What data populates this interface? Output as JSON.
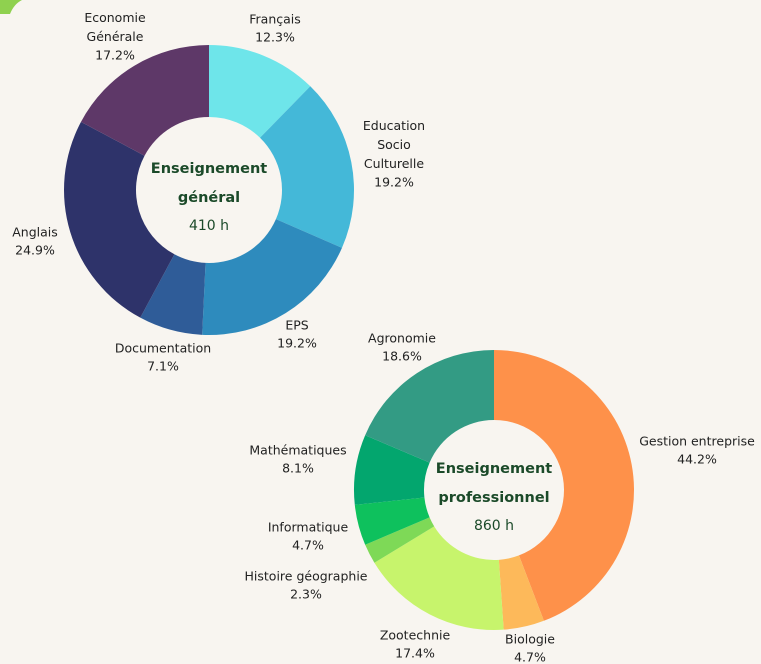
{
  "chart_data": [
    {
      "type": "pie",
      "center_title": "Enseignement général",
      "center_value": "410 h",
      "categories": [
        "Français",
        "Education Socio Culturelle",
        "EPS",
        "Documentation",
        "Anglais",
        "Economie Générale"
      ],
      "values": [
        12.3,
        19.2,
        19.2,
        7.1,
        24.9,
        17.2
      ],
      "value_labels": [
        "12.3%",
        "19.2%",
        "19.2%",
        "7.1%",
        "24.9%",
        "17.2%"
      ],
      "colors": [
        "#6ee5ea",
        "#44b8d8",
        "#2e8bbd",
        "#2f5c98",
        "#2e336a",
        "#5e3868"
      ]
    },
    {
      "type": "pie",
      "center_title": "Enseignement professionnel",
      "center_value": "860 h",
      "categories": [
        "Gestion entreprise",
        "Biologie",
        "Zootechnie",
        "Histoire géographie",
        "Informatique",
        "Mathématiques",
        "Agronomie"
      ],
      "values": [
        44.2,
        4.7,
        17.4,
        2.3,
        4.7,
        8.1,
        18.6
      ],
      "value_labels": [
        "44.2%",
        "4.7%",
        "17.4%",
        "2.3%",
        "4.7%",
        "8.1%",
        "18.6%"
      ],
      "colors": [
        "#fe914a",
        "#fdb95a",
        "#c7f46c",
        "#7ed957",
        "#0ec15d",
        "#03a66e",
        "#339b84"
      ]
    }
  ]
}
